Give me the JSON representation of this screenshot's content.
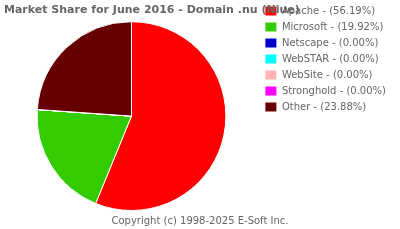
{
  "chart_data": {
    "type": "pie",
    "title": "Market Share for June 2016 - Domain .nu (Niue)",
    "categories": [
      "Apache - (56.19%)",
      "Microsoft - (19.92%)",
      "Netscape - (0.00%)",
      "WebSTAR - (0.00%)",
      "WebSite - (0.00%)",
      "Stronghold - (0.00%)",
      "Other - (23.88%)"
    ],
    "values": [
      56.19,
      19.92,
      0.001,
      0.001,
      0.001,
      0.001,
      23.88
    ],
    "colors": [
      "#ff0000",
      "#33cc00",
      "#0000cc",
      "#00ffff",
      "#ffb3b3",
      "#ff00ff",
      "#660000"
    ],
    "legend": "right",
    "annotations": [
      "Copyright (c) 1998-2025 E-Soft Inc."
    ]
  }
}
